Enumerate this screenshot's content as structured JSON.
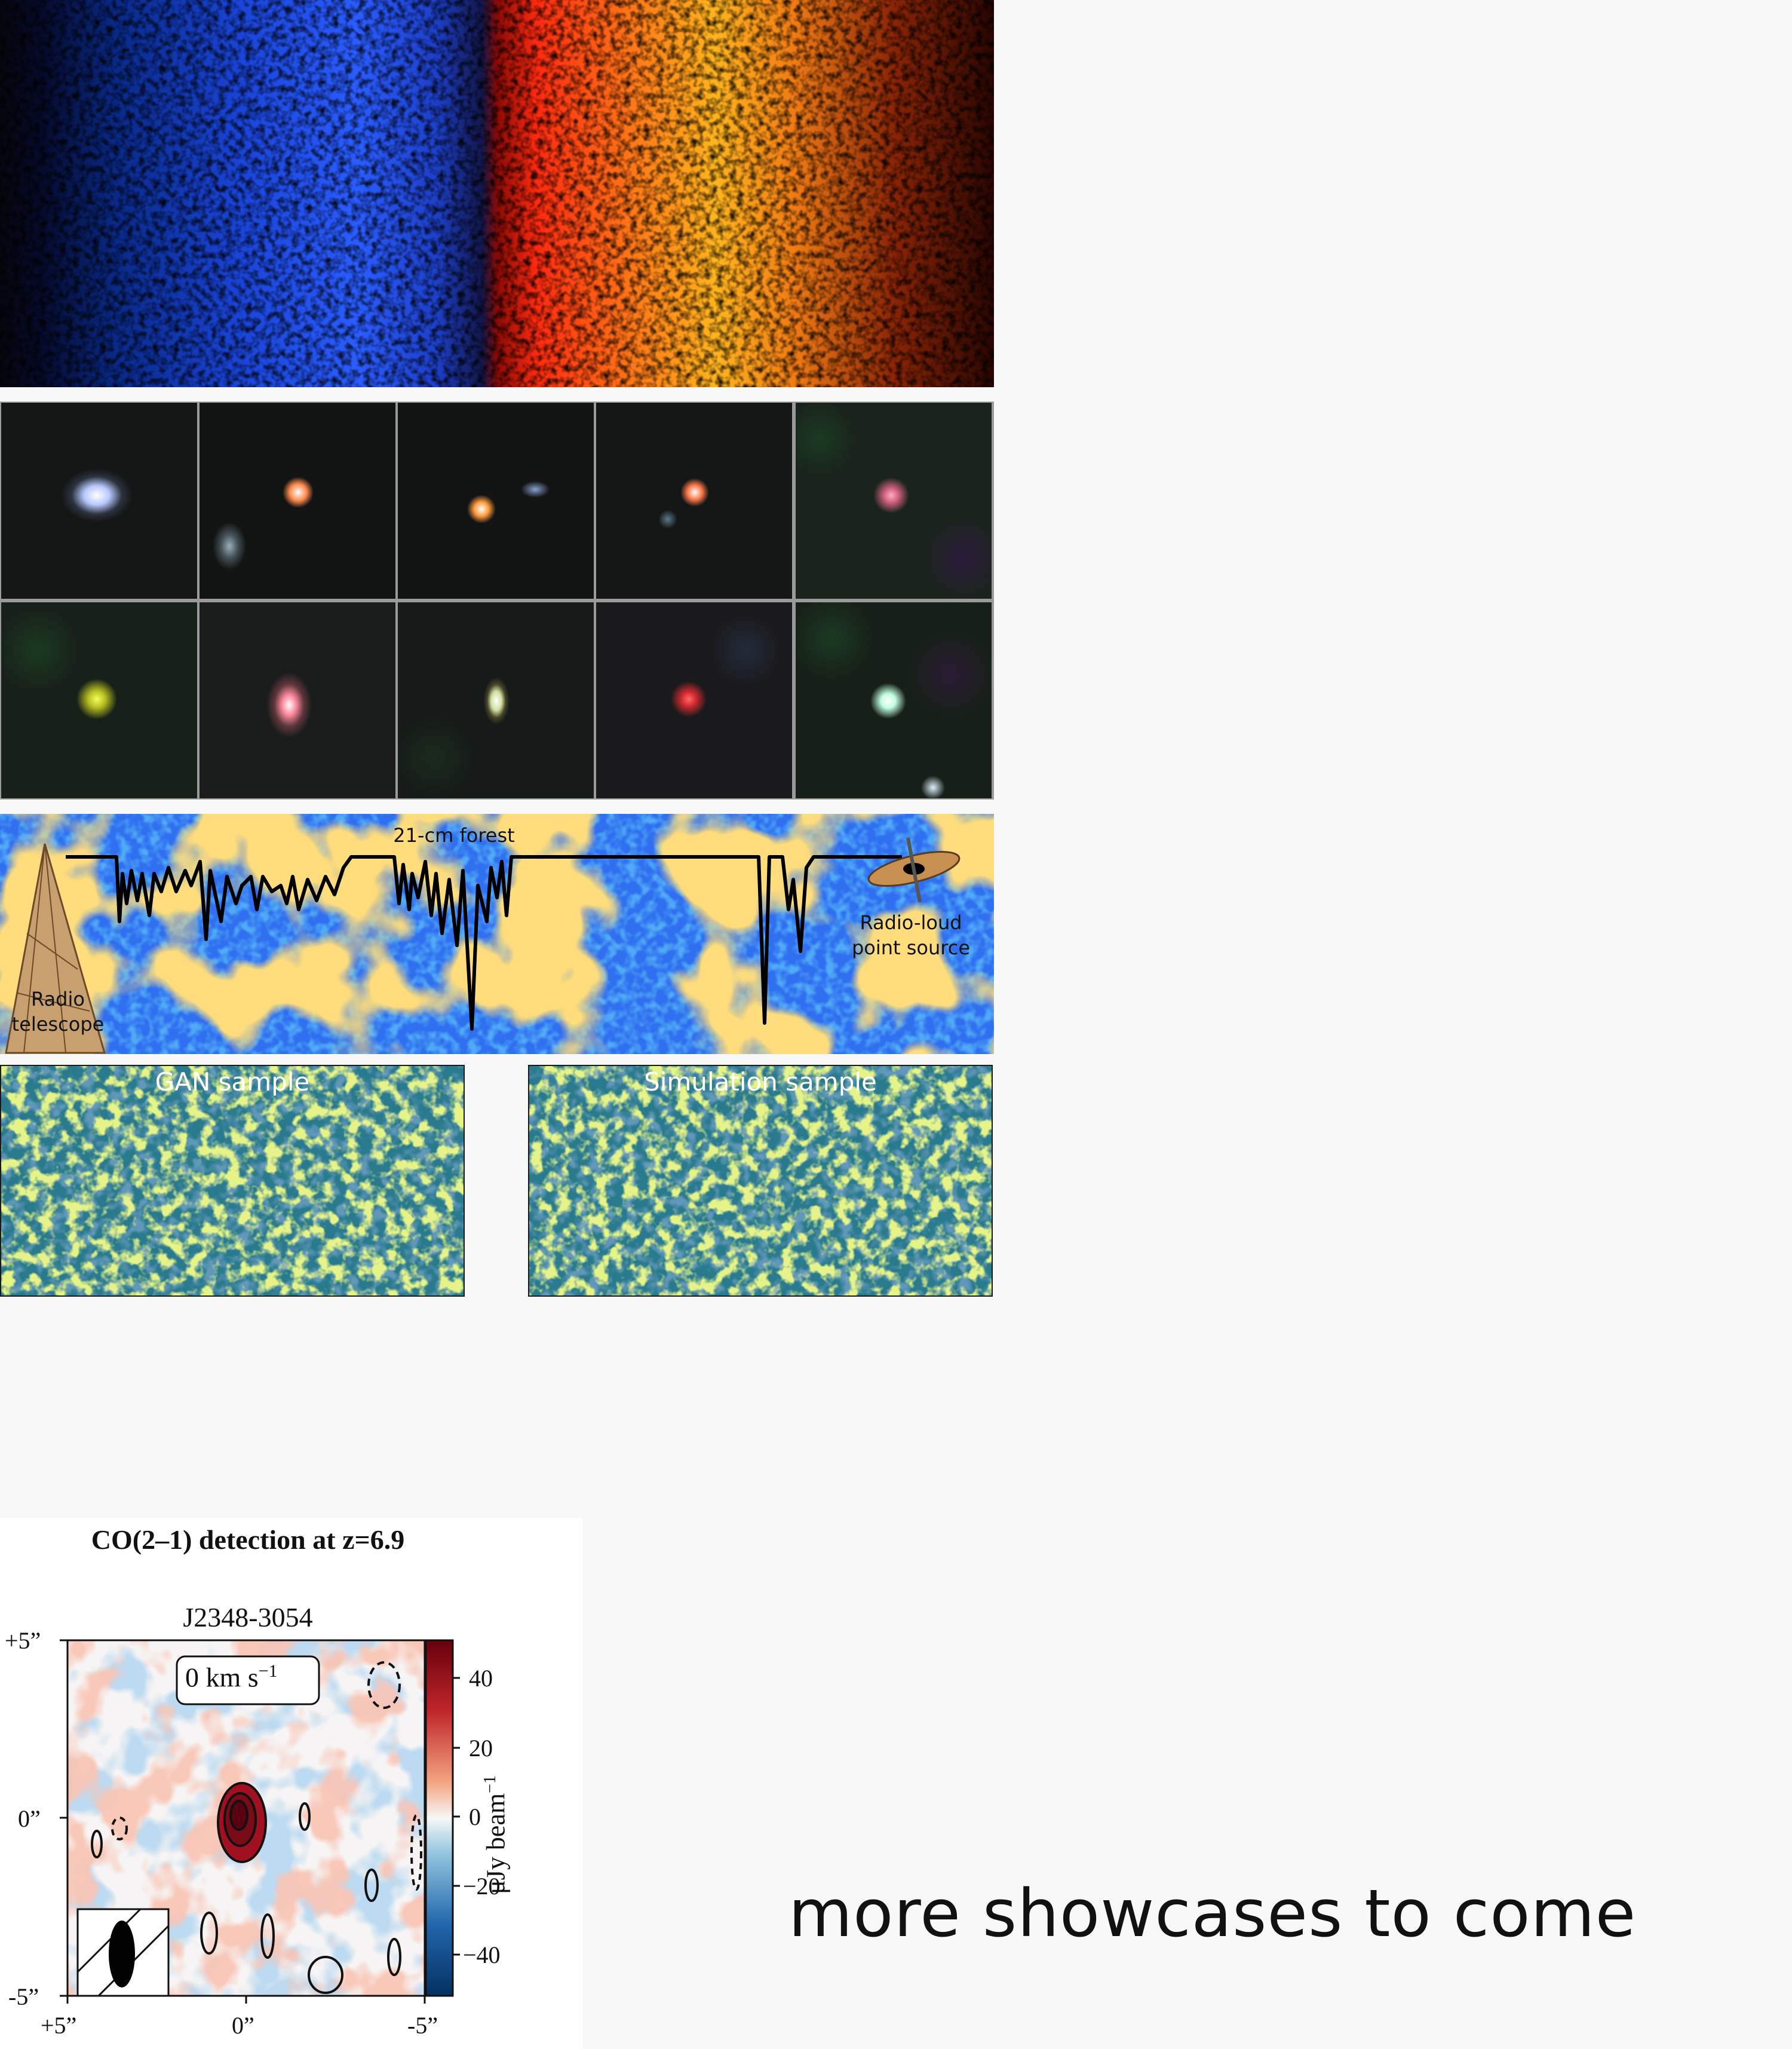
{
  "forest": {
    "title": "21-cm forest",
    "source_label_1": "Radio-loud",
    "source_label_2": "point source",
    "telescope_label_1": "Radio",
    "telescope_label_2": "telescope"
  },
  "gan": {
    "left_title": "GAN sample",
    "right_title": "Simulation sample"
  },
  "co_panel": {
    "heading": "CO(2–1) detection at z=6.9",
    "target": "J2348-3054",
    "velocity_main": "0 km s",
    "velocity_sup": "−1",
    "y_ticks": [
      "+5”",
      "0”",
      "-5”"
    ],
    "x_ticks": [
      "+5”",
      "0”",
      "-5”"
    ],
    "cbar_ticks": [
      "40",
      "20",
      "0",
      "−20",
      "−40"
    ],
    "cbar_label_main": "μJy beam",
    "cbar_label_sup": "−1",
    "colors": {
      "positive": "#a50f15",
      "negative": "#08519c",
      "zero": "#f7f7f7"
    }
  },
  "footer_text": "more showcases to come"
}
